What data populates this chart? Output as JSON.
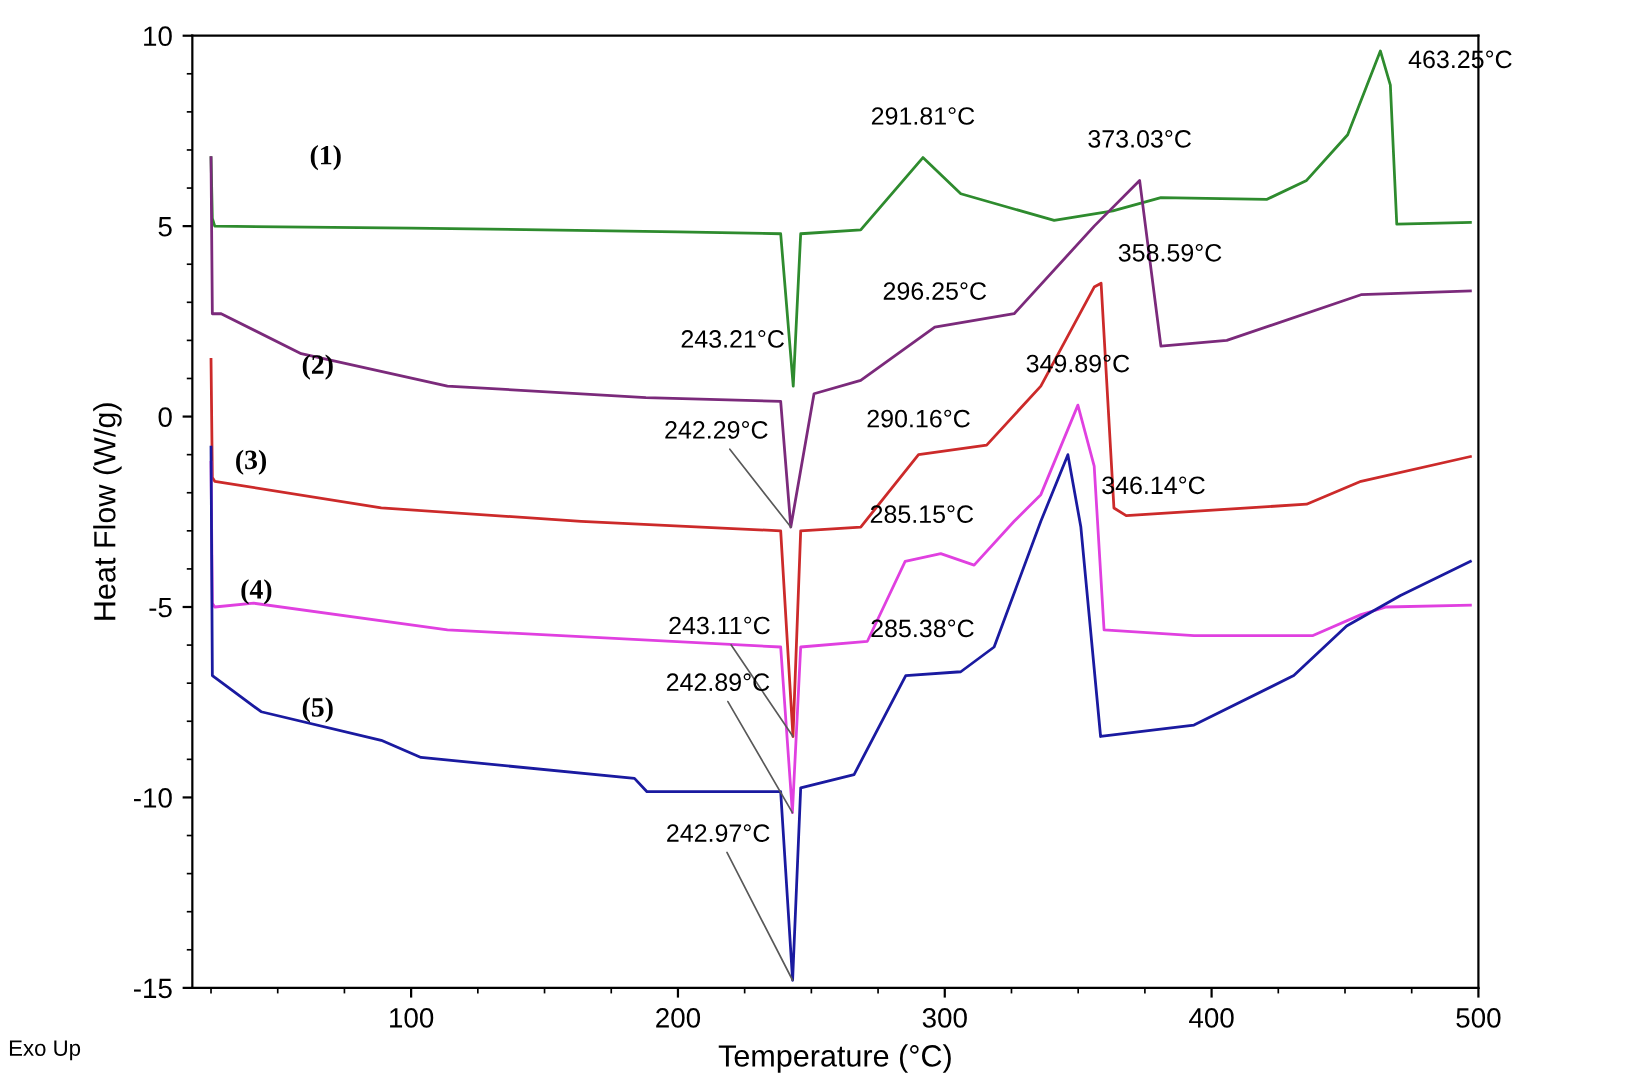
{
  "chart_data": {
    "type": "line",
    "xlabel": "Temperature (°C)",
    "ylabel": "Heat Flow (W/g)",
    "xlim": [
      18,
      500
    ],
    "xticks": [
      100,
      200,
      300,
      400,
      500
    ],
    "ylim": [
      -15,
      10
    ],
    "yticks": [
      -15,
      -10,
      -5,
      0,
      5,
      10
    ],
    "grid": false,
    "legend": false,
    "marker": "none",
    "line_style": "solid",
    "series": [
      {
        "name": "(1)",
        "color": "#2e8b2e",
        "x": [
          25,
          25.5,
          26.4,
          100,
          200,
          238.5,
          243.21,
          246,
          268.5,
          291.81,
          306,
          341,
          363,
          381,
          420.6,
          435.6,
          451,
          463.25,
          467,
          469.4,
          497
        ],
        "values": [
          6.8,
          5.2,
          5.0,
          4.95,
          4.85,
          4.8,
          0.8,
          4.8,
          4.9,
          6.8,
          5.85,
          5.15,
          5.4,
          5.75,
          5.7,
          6.2,
          7.4,
          9.6,
          8.7,
          5.05,
          5.1
        ]
      },
      {
        "name": "(2)",
        "color": "#7b2a7b",
        "x": [
          25,
          25.5,
          28.8,
          58.8,
          113.6,
          188,
          238.5,
          242.29,
          251,
          268.5,
          296.25,
          326,
          356,
          373.03,
          381,
          405.7,
          456,
          497
        ],
        "values": [
          6.8,
          2.7,
          2.7,
          1.65,
          0.8,
          0.5,
          0.4,
          -2.9,
          0.6,
          0.95,
          2.35,
          2.7,
          5.0,
          6.2,
          1.85,
          2.0,
          3.2,
          3.3
        ]
      },
      {
        "name": "(3)",
        "color": "#cc2a2a",
        "x": [
          25,
          25.5,
          26.4,
          88.8,
          163.7,
          238.5,
          243.11,
          246,
          268.5,
          290.16,
          315.7,
          336,
          356,
          358.59,
          363.4,
          368,
          435.6,
          456,
          497
        ],
        "values": [
          1.5,
          -1.6,
          -1.7,
          -2.4,
          -2.75,
          -3.0,
          -8.4,
          -3.0,
          -2.9,
          -1.0,
          -0.75,
          0.8,
          3.4,
          3.5,
          -2.4,
          -2.6,
          -2.3,
          -1.7,
          -1.05
        ]
      },
      {
        "name": "(4)",
        "color": "#e040e0",
        "x": [
          25,
          25.5,
          26.4,
          41,
          113.6,
          238.5,
          242.89,
          246,
          271,
          285.15,
          298.5,
          311,
          326,
          336,
          349.89,
          356,
          359.7,
          393.4,
          438,
          456,
          465.5,
          497
        ],
        "values": [
          -1.2,
          -4.9,
          -5.0,
          -4.9,
          -5.6,
          -6.05,
          -10.4,
          -6.05,
          -5.9,
          -3.8,
          -3.6,
          -3.9,
          -2.75,
          -2.05,
          0.3,
          -1.3,
          -5.6,
          -5.75,
          -5.75,
          -5.2,
          -5.0,
          -4.95
        ]
      },
      {
        "name": "(5)",
        "color": "#1a1aa0",
        "x": [
          25,
          25.5,
          26.4,
          43.8,
          88.8,
          103.7,
          183.7,
          188.4,
          238.5,
          242.97,
          246,
          266,
          285.38,
          306,
          318.5,
          336,
          346.14,
          351,
          358.4,
          393.4,
          430.8,
          450.6,
          470.8,
          497
        ],
        "values": [
          -0.8,
          -6.8,
          -6.85,
          -7.75,
          -8.5,
          -8.95,
          -9.5,
          -9.85,
          -9.85,
          -14.8,
          -9.75,
          -9.4,
          -6.8,
          -6.7,
          -6.05,
          -2.75,
          -1.0,
          -2.9,
          -8.4,
          -8.1,
          -6.8,
          -5.5,
          -4.7,
          -3.8
        ]
      }
    ],
    "annotations": [
      {
        "text": "291.81°C",
        "x": 291.81,
        "y": 6.8
      },
      {
        "text": "373.03°C",
        "x": 373.03,
        "y": 6.2
      },
      {
        "text": "463.25°C",
        "x": 463.25,
        "y": 9.6
      },
      {
        "text": "243.21°C",
        "x": 243.21,
        "y": 0.8
      },
      {
        "text": "296.25°C",
        "x": 296.25,
        "y": 2.35
      },
      {
        "text": "358.59°C",
        "x": 358.59,
        "y": 3.5
      },
      {
        "text": "242.29°C",
        "x": 242.29,
        "y": -2.9
      },
      {
        "text": "290.16°C",
        "x": 290.16,
        "y": -1.0
      },
      {
        "text": "349.89°C",
        "x": 349.89,
        "y": 0.3
      },
      {
        "text": "243.11°C",
        "x": 243.11,
        "y": -8.4
      },
      {
        "text": "285.15°C",
        "x": 285.15,
        "y": -3.8
      },
      {
        "text": "346.14°C",
        "x": 346.14,
        "y": -1.0
      },
      {
        "text": "242.89°C",
        "x": 242.89,
        "y": -10.4
      },
      {
        "text": "285.38°C",
        "x": 285.38,
        "y": -6.8
      },
      {
        "text": "242.97°C",
        "x": 242.97,
        "y": -14.8
      },
      "Exo Up"
    ]
  }
}
